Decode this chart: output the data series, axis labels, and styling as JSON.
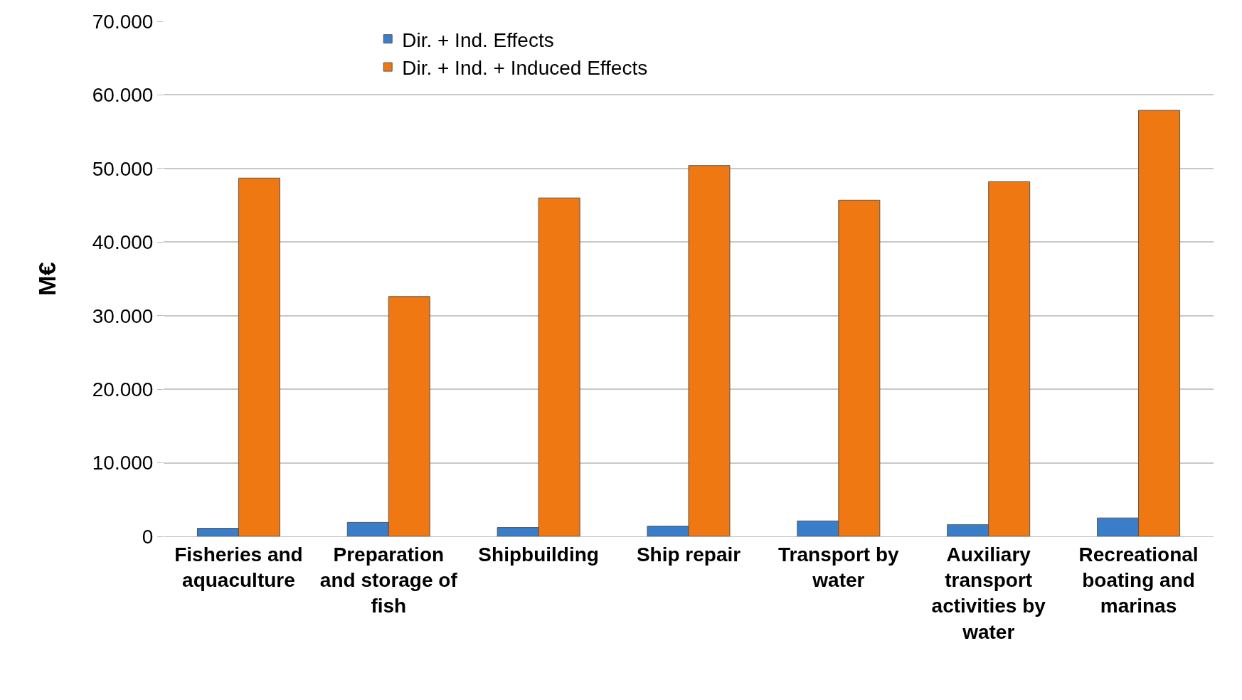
{
  "chart_data": {
    "type": "bar",
    "ylabel": "M€",
    "categories": [
      "Fisheries and aquaculture",
      "Preparation and storage of fish",
      "Shipbuilding",
      "Ship repair",
      "Transport by water",
      "Auxiliary transport activities by water",
      "Recreational boating and marinas"
    ],
    "series": [
      {
        "name": "Dir. + Ind. Effects",
        "color": "#3a7dc9",
        "values": [
          1100,
          1900,
          1200,
          1400,
          2100,
          1600,
          2500
        ]
      },
      {
        "name": "Dir. + Ind. + Induced Effects",
        "color": "#f07812",
        "values": [
          48700,
          32600,
          46000,
          50400,
          45700,
          48200,
          57900
        ]
      }
    ],
    "ylim": [
      0,
      70000
    ],
    "yticks": [
      0,
      {
        "value": 10000,
        "label": "10.000"
      },
      {
        "value": 20000,
        "label": "20.000"
      },
      {
        "value": 30000,
        "label": "30.000"
      },
      {
        "value": 40000,
        "label": "40.000"
      },
      {
        "value": 50000,
        "label": "50.000"
      },
      {
        "value": 60000,
        "label": "60.000"
      },
      {
        "value": 70000,
        "label": "70.000"
      }
    ],
    "grid": "y",
    "legend": "top"
  }
}
